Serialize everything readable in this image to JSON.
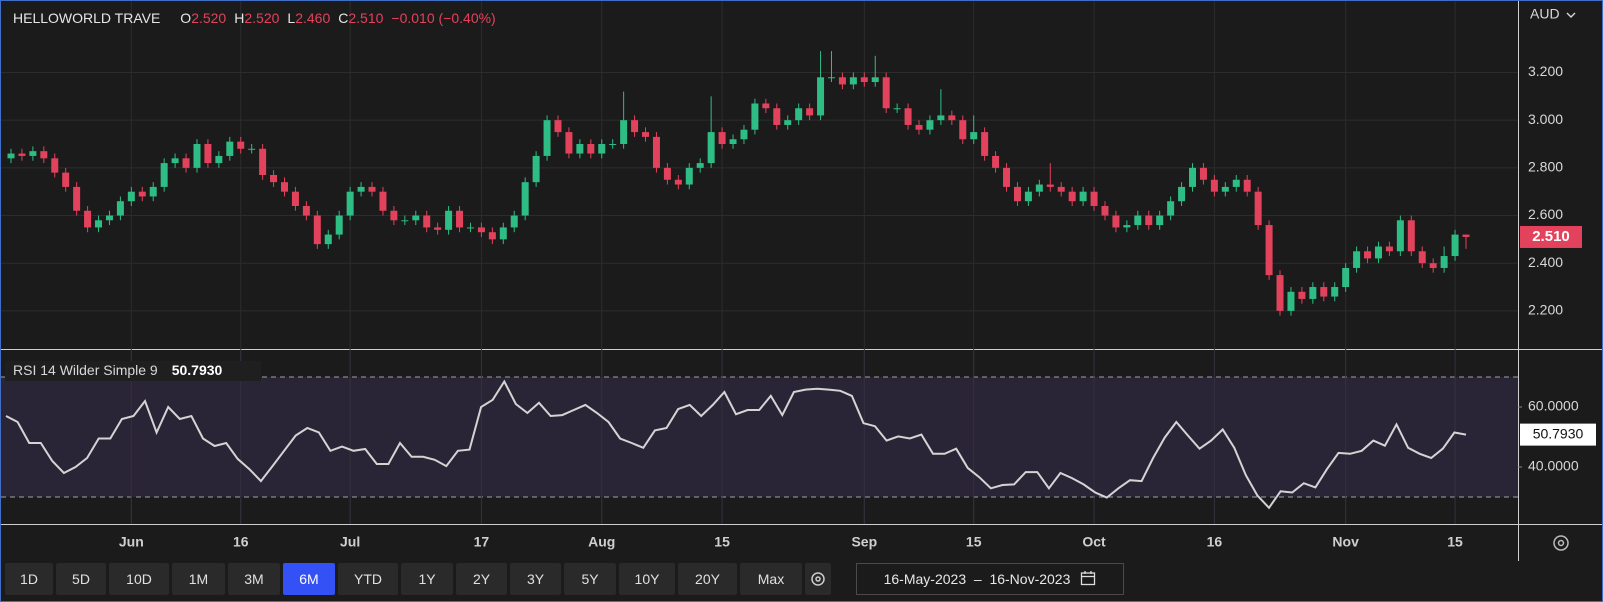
{
  "chart_data": [
    {
      "type": "candlestick",
      "header": {
        "name": "HELLOWORLD TRAVE",
        "fields": [
          {
            "key": "O",
            "value": "2.520"
          },
          {
            "key": "H",
            "value": "2.520"
          },
          {
            "key": "L",
            "value": "2.460"
          },
          {
            "key": "C",
            "value": "2.510"
          }
        ],
        "change": "−0.010 (−0.40%)"
      },
      "currency": "AUD",
      "last_label": "2.510",
      "up_color": "#2ebd85",
      "down_color": "#e3425c",
      "grid": true,
      "ylim": [
        2.04,
        3.5
      ],
      "yticks": [
        {
          "value": 2.2,
          "label": "2.200"
        },
        {
          "value": 2.4,
          "label": "2.400"
        },
        {
          "value": 2.6,
          "label": "2.600"
        },
        {
          "value": 2.8,
          "label": "2.800"
        },
        {
          "value": 3.0,
          "label": "3.000"
        },
        {
          "value": 3.2,
          "label": "3.200"
        }
      ],
      "xticks": [
        {
          "value": 11,
          "label": "Jun"
        },
        {
          "value": 21,
          "label": "16"
        },
        {
          "value": 31,
          "label": "Jul"
        },
        {
          "value": 43,
          "label": "17"
        },
        {
          "value": 54,
          "label": "Aug"
        },
        {
          "value": 65,
          "label": "15"
        },
        {
          "value": 78,
          "label": "Sep"
        },
        {
          "value": 88,
          "label": "15"
        },
        {
          "value": 99,
          "label": "Oct"
        },
        {
          "value": 110,
          "label": "16"
        },
        {
          "value": 122,
          "label": "Nov"
        },
        {
          "value": 132,
          "label": "15"
        }
      ],
      "open": [
        2.84,
        2.86,
        2.85,
        2.87,
        2.84,
        2.78,
        2.72,
        2.62,
        2.55,
        2.58,
        2.6,
        2.66,
        2.7,
        2.68,
        2.72,
        2.82,
        2.84,
        2.8,
        2.9,
        2.82,
        2.85,
        2.91,
        2.88,
        2.88,
        2.77,
        2.74,
        2.7,
        2.64,
        2.6,
        2.48,
        2.52,
        2.6,
        2.7,
        2.72,
        2.7,
        2.62,
        2.58,
        2.58,
        2.6,
        2.55,
        2.54,
        2.62,
        2.55,
        2.55,
        2.53,
        2.5,
        2.55,
        2.6,
        2.74,
        2.85,
        3.0,
        2.95,
        2.86,
        2.9,
        2.86,
        2.9,
        2.9,
        3.0,
        2.95,
        2.93,
        2.8,
        2.75,
        2.73,
        2.8,
        2.82,
        2.95,
        2.9,
        2.92,
        2.96,
        3.07,
        3.05,
        2.98,
        3.0,
        3.05,
        3.02,
        3.18,
        3.18,
        3.15,
        3.18,
        3.16,
        3.18,
        3.05,
        3.05,
        2.98,
        2.96,
        3.0,
        3.02,
        3.0,
        2.92,
        2.95,
        2.85,
        2.8,
        2.72,
        2.66,
        2.7,
        2.73,
        2.72,
        2.7,
        2.66,
        2.7,
        2.64,
        2.6,
        2.55,
        2.56,
        2.6,
        2.56,
        2.6,
        2.66,
        2.72,
        2.8,
        2.75,
        2.7,
        2.72,
        2.75,
        2.7,
        2.56,
        2.35,
        2.2,
        2.28,
        2.25,
        2.3,
        2.26,
        2.3,
        2.38,
        2.45,
        2.42,
        2.47,
        2.45,
        2.58,
        2.45,
        2.4,
        2.38,
        2.43,
        2.52
      ],
      "high": [
        2.88,
        2.88,
        2.89,
        2.89,
        2.86,
        2.8,
        2.74,
        2.64,
        2.6,
        2.62,
        2.68,
        2.72,
        2.72,
        2.74,
        2.84,
        2.86,
        2.86,
        2.92,
        2.92,
        2.87,
        2.93,
        2.93,
        2.9,
        2.9,
        2.79,
        2.76,
        2.72,
        2.66,
        2.62,
        2.54,
        2.62,
        2.72,
        2.74,
        2.74,
        2.72,
        2.64,
        2.6,
        2.62,
        2.62,
        2.57,
        2.64,
        2.64,
        2.57,
        2.57,
        2.55,
        2.57,
        2.62,
        2.76,
        2.87,
        3.02,
        3.02,
        2.97,
        2.92,
        2.92,
        2.92,
        2.92,
        3.12,
        3.02,
        2.97,
        2.95,
        2.82,
        2.77,
        2.82,
        2.84,
        3.1,
        2.97,
        2.94,
        2.98,
        3.09,
        3.09,
        3.07,
        3.02,
        3.07,
        3.07,
        3.29,
        3.29,
        3.2,
        3.2,
        3.2,
        3.27,
        3.2,
        3.07,
        3.07,
        3.0,
        3.02,
        3.13,
        3.04,
        3.02,
        3.02,
        2.97,
        2.87,
        2.82,
        2.74,
        2.72,
        2.75,
        2.82,
        2.74,
        2.72,
        2.72,
        2.72,
        2.66,
        2.62,
        2.58,
        2.62,
        2.62,
        2.62,
        2.68,
        2.74,
        2.82,
        2.82,
        2.77,
        2.74,
        2.77,
        2.77,
        2.72,
        2.58,
        2.37,
        2.3,
        2.3,
        2.32,
        2.32,
        2.32,
        2.4,
        2.47,
        2.47,
        2.49,
        2.49,
        2.6,
        2.6,
        2.47,
        2.42,
        2.47,
        2.54,
        2.52
      ],
      "low": [
        2.82,
        2.83,
        2.83,
        2.82,
        2.76,
        2.7,
        2.6,
        2.53,
        2.53,
        2.56,
        2.58,
        2.64,
        2.66,
        2.66,
        2.7,
        2.8,
        2.78,
        2.78,
        2.8,
        2.8,
        2.83,
        2.86,
        2.86,
        2.75,
        2.72,
        2.68,
        2.62,
        2.58,
        2.46,
        2.46,
        2.5,
        2.58,
        2.68,
        2.68,
        2.6,
        2.56,
        2.56,
        2.56,
        2.53,
        2.52,
        2.52,
        2.53,
        2.53,
        2.51,
        2.48,
        2.48,
        2.53,
        2.58,
        2.72,
        2.83,
        2.93,
        2.84,
        2.84,
        2.84,
        2.84,
        2.88,
        2.88,
        2.93,
        2.91,
        2.78,
        2.73,
        2.71,
        2.71,
        2.78,
        2.8,
        2.88,
        2.88,
        2.9,
        2.94,
        3.03,
        2.96,
        2.96,
        2.98,
        3.0,
        3.0,
        3.16,
        3.13,
        3.13,
        3.14,
        3.14,
        3.03,
        3.03,
        2.96,
        2.94,
        2.94,
        2.98,
        2.98,
        2.9,
        2.9,
        2.83,
        2.78,
        2.7,
        2.64,
        2.64,
        2.68,
        2.7,
        2.68,
        2.64,
        2.64,
        2.62,
        2.58,
        2.53,
        2.53,
        2.54,
        2.54,
        2.54,
        2.58,
        2.64,
        2.7,
        2.73,
        2.68,
        2.68,
        2.7,
        2.68,
        2.54,
        2.33,
        2.18,
        2.18,
        2.23,
        2.23,
        2.24,
        2.24,
        2.28,
        2.36,
        2.4,
        2.4,
        2.43,
        2.43,
        2.43,
        2.38,
        2.36,
        2.36,
        2.41,
        2.46
      ],
      "close": [
        2.86,
        2.85,
        2.87,
        2.84,
        2.78,
        2.72,
        2.62,
        2.55,
        2.58,
        2.6,
        2.66,
        2.7,
        2.68,
        2.72,
        2.82,
        2.84,
        2.8,
        2.9,
        2.82,
        2.85,
        2.91,
        2.88,
        2.88,
        2.77,
        2.74,
        2.7,
        2.64,
        2.6,
        2.48,
        2.52,
        2.6,
        2.7,
        2.72,
        2.7,
        2.62,
        2.58,
        2.58,
        2.6,
        2.55,
        2.54,
        2.62,
        2.55,
        2.55,
        2.53,
        2.5,
        2.55,
        2.6,
        2.74,
        2.85,
        3.0,
        2.95,
        2.86,
        2.9,
        2.86,
        2.9,
        2.9,
        3.0,
        2.95,
        2.93,
        2.8,
        2.75,
        2.73,
        2.8,
        2.82,
        2.95,
        2.9,
        2.92,
        2.96,
        3.07,
        3.05,
        2.98,
        3.0,
        3.05,
        3.02,
        3.18,
        3.18,
        3.15,
        3.18,
        3.16,
        3.18,
        3.05,
        3.05,
        2.98,
        2.96,
        3.0,
        3.02,
        3.0,
        2.92,
        2.95,
        2.85,
        2.8,
        2.72,
        2.66,
        2.7,
        2.73,
        2.72,
        2.7,
        2.66,
        2.7,
        2.64,
        2.6,
        2.55,
        2.56,
        2.6,
        2.56,
        2.6,
        2.66,
        2.72,
        2.8,
        2.75,
        2.7,
        2.72,
        2.75,
        2.7,
        2.56,
        2.35,
        2.2,
        2.28,
        2.25,
        2.3,
        2.26,
        2.3,
        2.38,
        2.45,
        2.42,
        2.47,
        2.45,
        2.58,
        2.45,
        2.4,
        2.38,
        2.43,
        2.52,
        2.51
      ]
    },
    {
      "type": "line",
      "title": "RSI 14 Wilder Simple 9",
      "value_label": "50.7930",
      "color": "#d4d4d4",
      "band": [
        30,
        70
      ],
      "band_color": "#2a2536",
      "ylim": [
        21,
        79
      ],
      "yticks": [
        {
          "value": 40,
          "label": "40.0000"
        },
        {
          "value": 60,
          "label": "60.0000"
        }
      ],
      "values": [
        57,
        55,
        48,
        48,
        42,
        38,
        40,
        43,
        49.5,
        49.5,
        56,
        57,
        62,
        51.5,
        60,
        56,
        57,
        49.5,
        47,
        48,
        42.7,
        39.3,
        35.3,
        40.3,
        45.4,
        50.5,
        53,
        51.5,
        45.4,
        46.8,
        45.4,
        46,
        41,
        41,
        48,
        43.4,
        43.4,
        42.4,
        40.3,
        45.4,
        45.8,
        60,
        62.4,
        68.5,
        61,
        58,
        61.4,
        57,
        57.3,
        59,
        60.7,
        58,
        55,
        49.5,
        48,
        46.4,
        52.2,
        53,
        59.3,
        60.7,
        57,
        60.7,
        65,
        57.6,
        59,
        59,
        63.7,
        57.3,
        65,
        65.8,
        66.1,
        65.8,
        65.4,
        63.7,
        54.6,
        53.6,
        48.8,
        50.2,
        49.5,
        50.8,
        44.4,
        44.4,
        46.1,
        39.7,
        36.6,
        32.9,
        34,
        34.2,
        38.3,
        38.3,
        32.9,
        38,
        36.3,
        34.2,
        31.5,
        29.8,
        32.9,
        35.6,
        35.3,
        43,
        49.8,
        55,
        50.5,
        46.1,
        48.8,
        52.5,
        46.4,
        37.3,
        30.5,
        26.4,
        31.9,
        31.5,
        34.6,
        33.2,
        39.3,
        44.7,
        44.4,
        45.4,
        48.8,
        47.1,
        54.2,
        46.4,
        44.4,
        43,
        46.1,
        51.5,
        50.793
      ]
    }
  ],
  "toolbar": {
    "ranges": [
      "1D",
      "5D",
      "10D",
      "1M",
      "3M",
      "6M",
      "YTD",
      "1Y",
      "2Y",
      "3Y",
      "5Y",
      "10Y",
      "20Y",
      "Max"
    ],
    "selected": "6M",
    "date_range": "16-May-2023  –  16-Nov-2023"
  }
}
